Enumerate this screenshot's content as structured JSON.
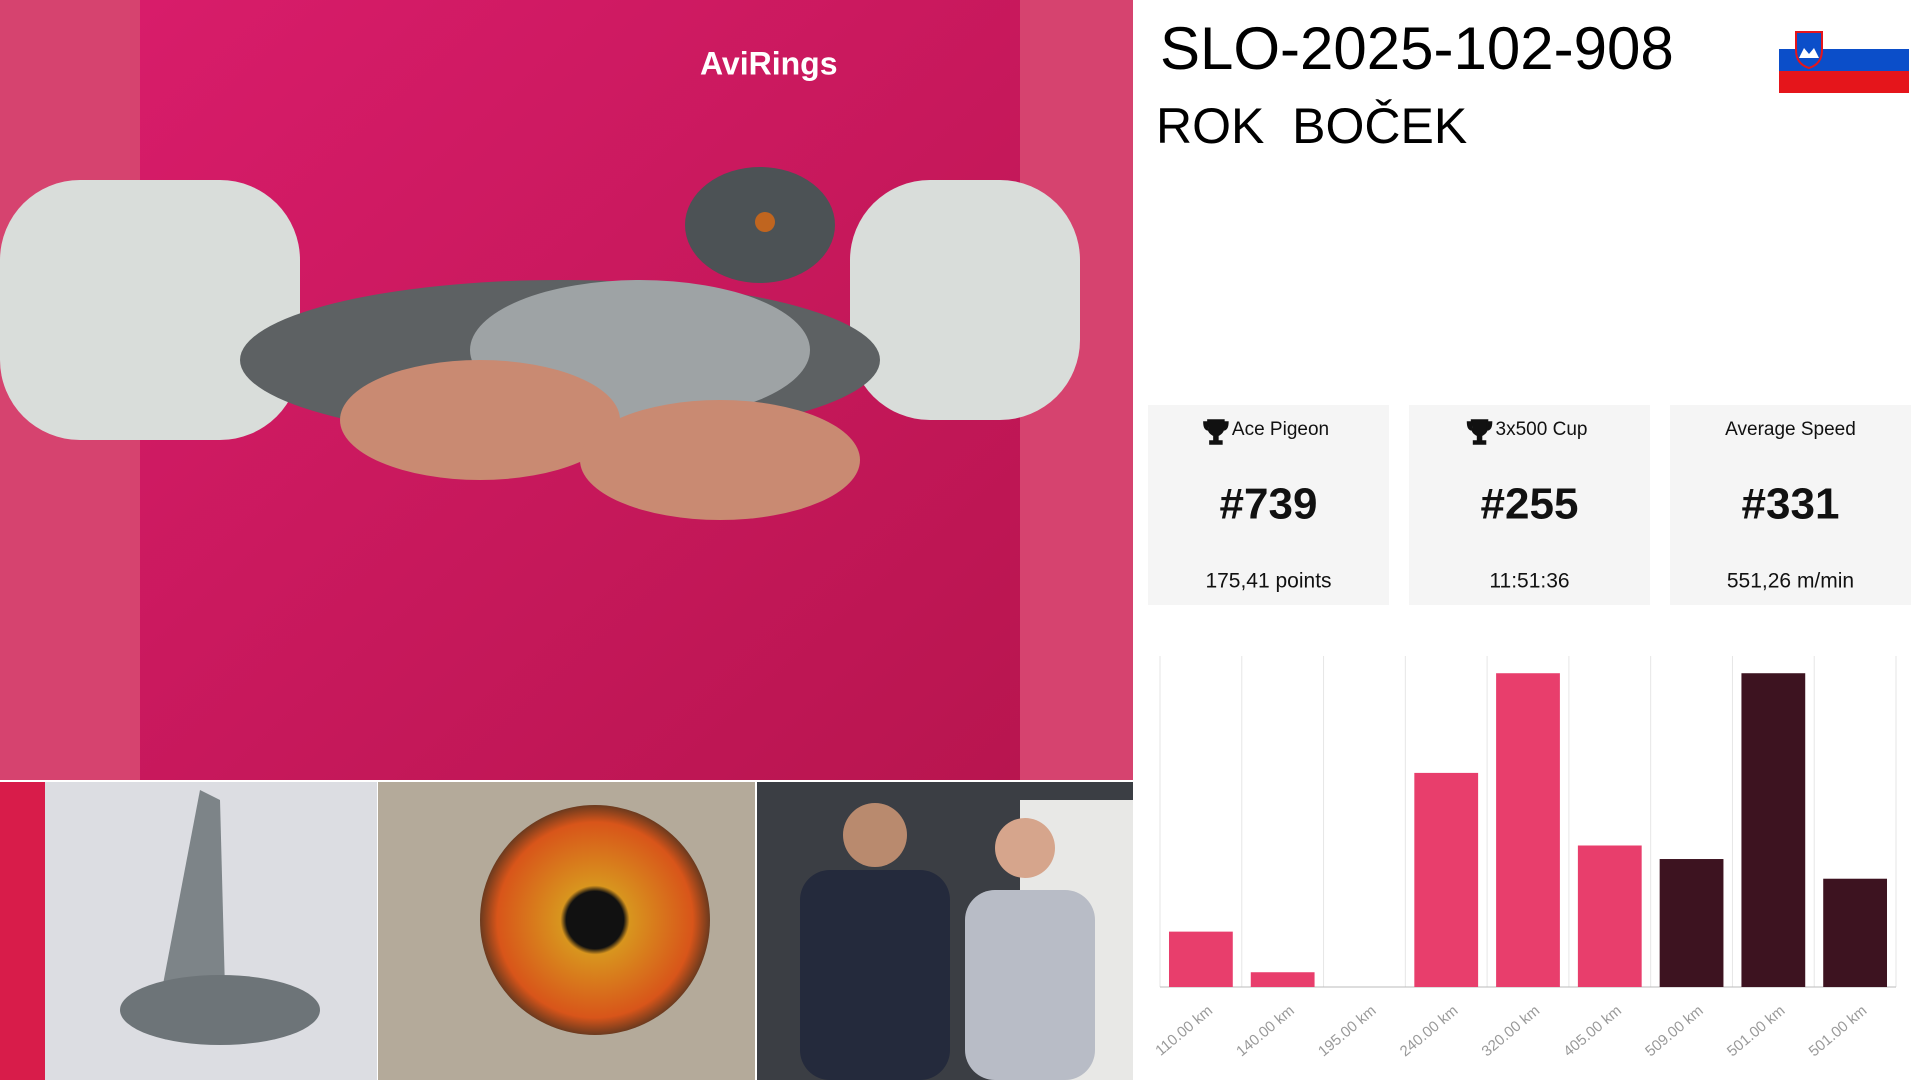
{
  "header": {
    "ring": "SLO-2025-102-908",
    "name": "ROK  BOČEK"
  },
  "stats": [
    {
      "title": "Ace Pigeon",
      "value": "#739",
      "detail": "175,41 points",
      "trophy": true
    },
    {
      "title": "3x500 Cup",
      "value": "#255",
      "detail": "11:51:36",
      "trophy": true
    },
    {
      "title": "Average Speed",
      "value": "#331",
      "detail": "551,26 m/min",
      "trophy": false
    }
  ],
  "chart_data": {
    "type": "bar",
    "categories": [
      "110.00 km",
      "140.00 km",
      "195.00 km",
      "240.00 km",
      "320.00 km",
      "405.00 km",
      "509.00 km",
      "501.00 km",
      "501.00 km"
    ],
    "values": [
      45,
      12,
      0,
      174,
      255,
      115,
      104,
      255,
      88
    ],
    "colors": [
      "#e83e6c",
      "#e83e6c",
      "#e83e6c",
      "#e83e6c",
      "#e83e6c",
      "#e83e6c",
      "#3d1320",
      "#3d1320",
      "#3d1320"
    ],
    "ylim": [
      0,
      269
    ],
    "grid": true
  }
}
